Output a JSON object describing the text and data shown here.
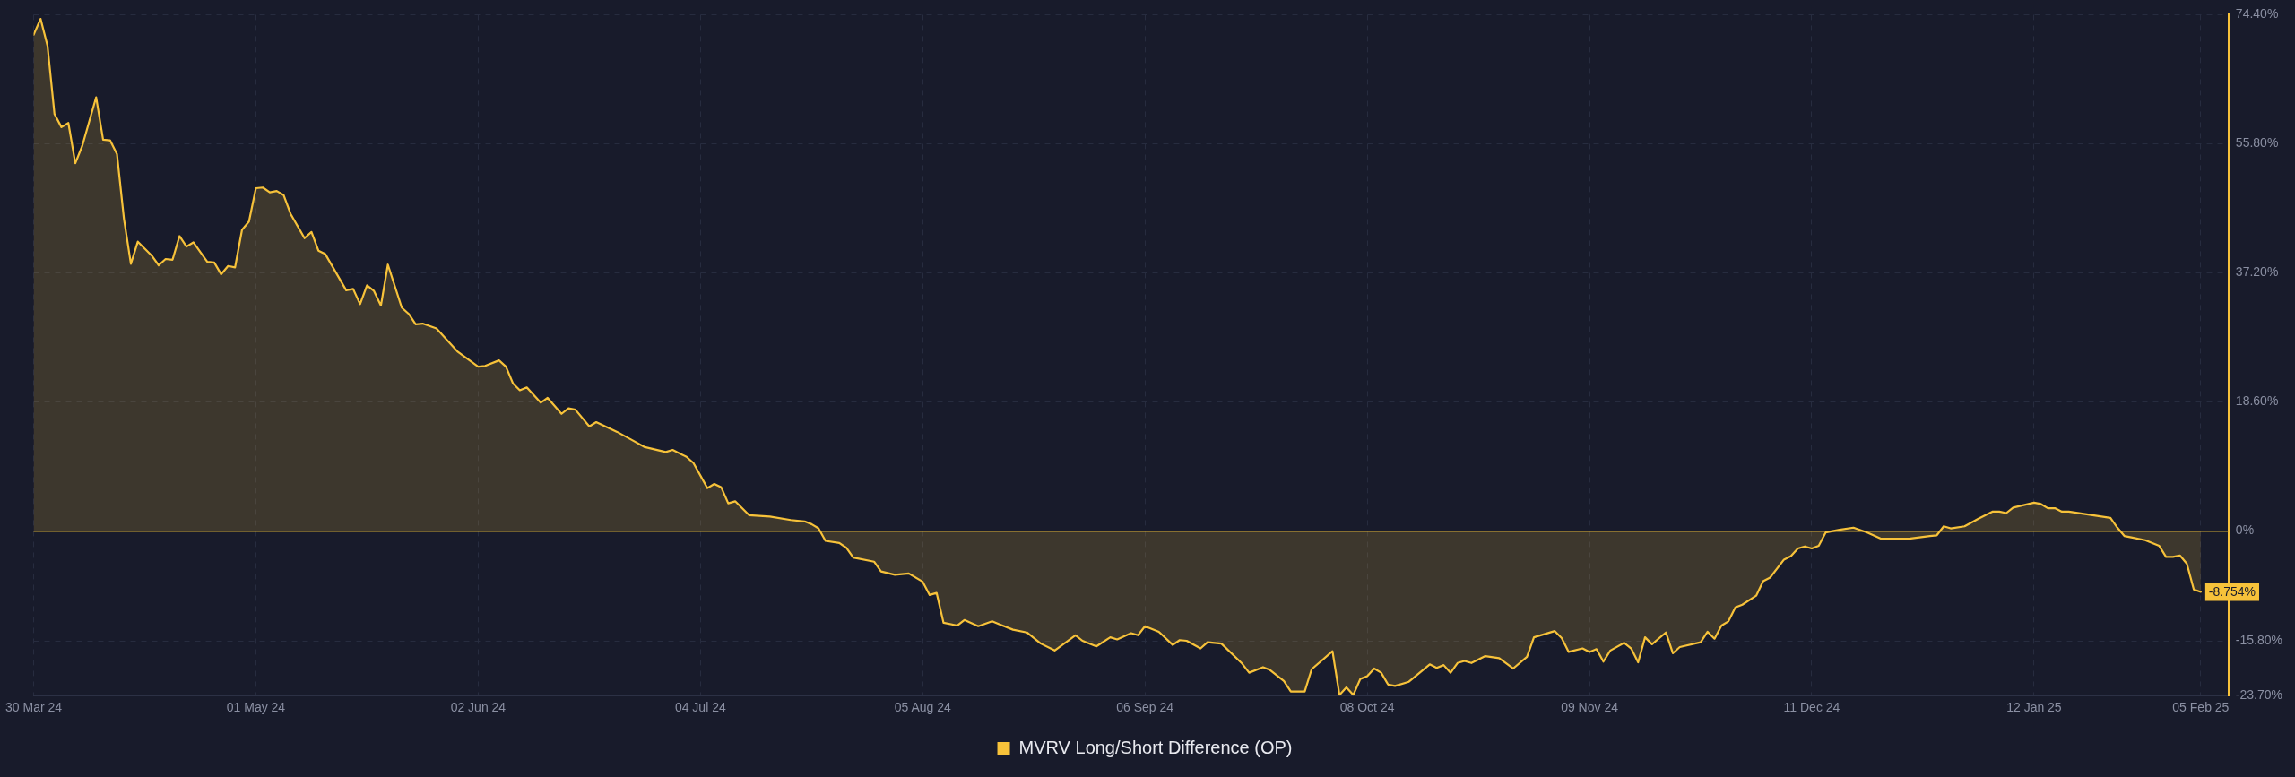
{
  "chart_data": {
    "type": "area",
    "x": [
      "2024-03-30",
      "2024-03-31",
      "2024-04-01",
      "2024-04-02",
      "2024-04-03",
      "2024-04-04",
      "2024-04-05",
      "2024-04-06",
      "2024-04-08",
      "2024-04-09",
      "2024-04-10",
      "2024-04-11",
      "2024-04-12",
      "2024-04-13",
      "2024-04-14",
      "2024-04-16",
      "2024-04-17",
      "2024-04-18",
      "2024-04-19",
      "2024-04-20",
      "2024-04-21",
      "2024-04-22",
      "2024-04-24",
      "2024-04-25",
      "2024-04-26",
      "2024-04-27",
      "2024-04-28",
      "2024-04-29",
      "2024-04-30",
      "2024-05-01",
      "2024-05-02",
      "2024-05-03",
      "2024-05-04",
      "2024-05-05",
      "2024-05-06",
      "2024-05-08",
      "2024-05-09",
      "2024-05-10",
      "2024-05-11",
      "2024-05-14",
      "2024-05-15",
      "2024-05-16",
      "2024-05-17",
      "2024-05-18",
      "2024-05-19",
      "2024-05-20",
      "2024-05-22",
      "2024-05-23",
      "2024-05-24",
      "2024-05-25",
      "2024-05-27",
      "2024-05-30",
      "2024-06-02",
      "2024-06-03",
      "2024-06-05",
      "2024-06-06",
      "2024-06-07",
      "2024-06-08",
      "2024-06-09",
      "2024-06-11",
      "2024-06-12",
      "2024-06-14",
      "2024-06-15",
      "2024-06-16",
      "2024-06-18",
      "2024-06-19",
      "2024-06-22",
      "2024-06-24",
      "2024-06-26",
      "2024-06-29",
      "2024-06-30",
      "2024-07-02",
      "2024-07-03",
      "2024-07-05",
      "2024-07-06",
      "2024-07-07",
      "2024-07-08",
      "2024-07-09",
      "2024-07-11",
      "2024-07-14",
      "2024-07-17",
      "2024-07-19",
      "2024-07-20",
      "2024-07-21",
      "2024-07-22",
      "2024-07-24",
      "2024-07-25",
      "2024-07-26",
      "2024-07-29",
      "2024-07-30",
      "2024-08-01",
      "2024-08-03",
      "2024-08-05",
      "2024-08-06",
      "2024-08-07",
      "2024-08-08",
      "2024-08-10",
      "2024-08-11",
      "2024-08-13",
      "2024-08-15",
      "2024-08-16",
      "2024-08-18",
      "2024-08-20",
      "2024-08-22",
      "2024-08-24",
      "2024-08-27",
      "2024-08-28",
      "2024-08-30",
      "2024-09-01",
      "2024-09-02",
      "2024-09-04",
      "2024-09-05",
      "2024-09-06",
      "2024-09-08",
      "2024-09-10",
      "2024-09-11",
      "2024-09-12",
      "2024-09-14",
      "2024-09-15",
      "2024-09-17",
      "2024-09-20",
      "2024-09-21",
      "2024-09-23",
      "2024-09-24",
      "2024-09-26",
      "2024-09-27",
      "2024-09-29",
      "2024-09-30",
      "2024-10-03",
      "2024-10-04",
      "2024-10-05",
      "2024-10-06",
      "2024-10-07",
      "2024-10-08",
      "2024-10-09",
      "2024-10-10",
      "2024-10-11",
      "2024-10-12",
      "2024-10-14",
      "2024-10-17",
      "2024-10-18",
      "2024-10-19",
      "2024-10-20",
      "2024-10-21",
      "2024-10-22",
      "2024-10-23",
      "2024-10-25",
      "2024-10-27",
      "2024-10-29",
      "2024-10-31",
      "2024-11-01",
      "2024-11-04",
      "2024-11-05",
      "2024-11-06",
      "2024-11-08",
      "2024-11-09",
      "2024-11-10",
      "2024-11-11",
      "2024-11-12",
      "2024-11-14",
      "2024-11-15",
      "2024-11-16",
      "2024-11-17",
      "2024-11-18",
      "2024-11-20",
      "2024-11-21",
      "2024-11-22",
      "2024-11-25",
      "2024-11-26",
      "2024-11-27",
      "2024-11-28",
      "2024-11-29",
      "2024-11-30",
      "2024-12-01",
      "2024-12-03",
      "2024-12-04",
      "2024-12-05",
      "2024-12-07",
      "2024-12-08",
      "2024-12-09",
      "2024-12-10",
      "2024-12-11",
      "2024-12-12",
      "2024-12-13",
      "2024-12-15",
      "2024-12-17",
      "2024-12-19",
      "2024-12-21",
      "2024-12-25",
      "2024-12-28",
      "2024-12-29",
      "2024-12-30",
      "2024-12-31",
      "2025-01-02",
      "2025-01-04",
      "2025-01-06",
      "2025-01-07",
      "2025-01-08",
      "2025-01-09",
      "2025-01-12",
      "2025-01-13",
      "2025-01-14",
      "2025-01-15",
      "2025-01-16",
      "2025-01-17",
      "2025-01-23",
      "2025-01-24",
      "2025-01-25",
      "2025-01-26",
      "2025-01-28",
      "2025-01-30",
      "2025-01-31",
      "2025-02-01",
      "2025-02-02",
      "2025-02-03",
      "2025-02-04",
      "2025-02-05"
    ],
    "series": [
      {
        "name": "MVRV Long/Short Difference (OP)",
        "color": "#f7c23a",
        "values": [
          71.5,
          73.8,
          69.9,
          60.1,
          58.2,
          58.8,
          53.0,
          55.5,
          62.5,
          56.4,
          56.3,
          54.3,
          45.0,
          38.5,
          41.7,
          39.7,
          38.3,
          39.2,
          39.1,
          42.5,
          41.0,
          41.6,
          38.8,
          38.7,
          37.0,
          38.2,
          38.0,
          43.4,
          44.6,
          49.4,
          49.5,
          48.8,
          49.0,
          48.4,
          45.7,
          42.2,
          43.1,
          40.4,
          39.9,
          34.7,
          34.9,
          32.7,
          35.4,
          34.6,
          32.5,
          38.4,
          32.2,
          31.3,
          29.8,
          29.9,
          29.2,
          25.9,
          23.7,
          23.8,
          24.6,
          23.7,
          21.3,
          20.3,
          20.7,
          18.5,
          19.2,
          16.9,
          17.7,
          17.5,
          15.1,
          15.7,
          14.3,
          13.2,
          12.1,
          11.4,
          11.7,
          10.7,
          9.8,
          6.2,
          6.8,
          6.3,
          4.0,
          4.3,
          2.3,
          2.1,
          1.6,
          1.4,
          1.0,
          0.4,
          -1.4,
          -1.7,
          -2.4,
          -3.8,
          -4.4,
          -5.8,
          -6.3,
          -6.1,
          -7.3,
          -9.2,
          -8.9,
          -13.2,
          -13.6,
          -12.8,
          -13.7,
          -13.0,
          -13.4,
          -14.2,
          -14.6,
          -16.2,
          -17.2,
          -15.0,
          -15.8,
          -16.6,
          -15.3,
          -15.6,
          -14.7,
          -15.0,
          -13.7,
          -14.5,
          -16.4,
          -15.7,
          -15.8,
          -16.9,
          -16.0,
          -16.2,
          -19.1,
          -20.4,
          -19.6,
          -20.0,
          -21.6,
          -23.1,
          -23.1,
          -19.9,
          -17.3,
          -23.6,
          -22.5,
          -23.6,
          -21.3,
          -20.9,
          -19.8,
          -20.4,
          -22.1,
          -22.3,
          -21.7,
          -19.2,
          -19.7,
          -19.3,
          -20.4,
          -19.0,
          -18.7,
          -19.0,
          -18.0,
          -18.3,
          -19.8,
          -18.1,
          -15.3,
          -14.4,
          -15.4,
          -17.4,
          -16.9,
          -17.4,
          -17.0,
          -18.8,
          -17.2,
          -16.1,
          -16.9,
          -18.9,
          -15.3,
          -16.3,
          -14.6,
          -17.6,
          -16.7,
          -16.0,
          -14.5,
          -15.5,
          -13.6,
          -13.0,
          -11.0,
          -10.6,
          -9.3,
          -7.2,
          -6.7,
          -4.1,
          -3.6,
          -2.5,
          -2.2,
          -2.5,
          -2.1,
          -0.2,
          0.2,
          0.5,
          -0.2,
          -1.1,
          -1.1,
          -0.7,
          -0.6,
          0.7,
          0.4,
          0.7,
          1.8,
          2.8,
          2.8,
          2.6,
          3.4,
          4.1,
          3.9,
          3.3,
          3.3,
          2.8,
          2.8,
          1.9,
          0.5,
          -0.7,
          -0.9,
          -1.3,
          -2.1,
          -3.7,
          -3.7,
          -3.5,
          -4.7,
          -8.4,
          -8.754
        ]
      }
    ],
    "xlim": [
      "2024-03-30",
      "2025-02-09"
    ],
    "xticks": [
      {
        "value": "2024-03-30",
        "label": "30 Mar 24"
      },
      {
        "value": "2024-05-01",
        "label": "01 May 24"
      },
      {
        "value": "2024-06-02",
        "label": "02 Jun 24"
      },
      {
        "value": "2024-07-04",
        "label": "04 Jul 24"
      },
      {
        "value": "2024-08-05",
        "label": "05 Aug 24"
      },
      {
        "value": "2024-09-06",
        "label": "06 Sep 24"
      },
      {
        "value": "2024-10-08",
        "label": "08 Oct 24"
      },
      {
        "value": "2024-11-09",
        "label": "09 Nov 24"
      },
      {
        "value": "2024-12-11",
        "label": "11 Dec 24"
      },
      {
        "value": "2025-01-12",
        "label": "12 Jan 25"
      },
      {
        "value": "2025-02-05",
        "label": "05 Feb 25"
      }
    ],
    "ylim": [
      -23.7,
      74.4
    ],
    "yticks": [
      {
        "value": -23.7,
        "label": "-23.70%"
      },
      {
        "value": -15.8,
        "label": "-15.80%"
      },
      {
        "value": 0,
        "label": "0%"
      },
      {
        "value": 18.6,
        "label": "18.60%"
      },
      {
        "value": 37.2,
        "label": "37.20%"
      },
      {
        "value": 55.8,
        "label": "55.80%"
      },
      {
        "value": 74.4,
        "label": "74.40%"
      }
    ],
    "grid": true,
    "legend": "bottom",
    "ref_lines": [
      {
        "axis": "y",
        "value": 0,
        "color": "#c9a535"
      }
    ],
    "annotations": [
      {
        "text": "-8.754%",
        "x": "2025-02-05",
        "y": -8.754
      }
    ]
  }
}
